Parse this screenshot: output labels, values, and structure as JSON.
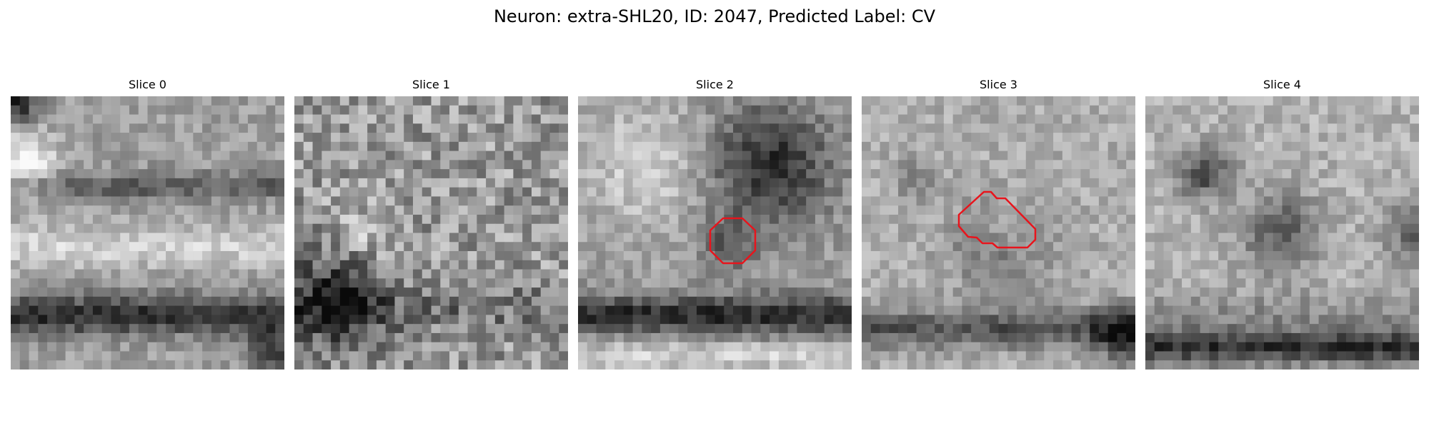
{
  "figure": {
    "title": "Neuron: extra-SHL20, ID: 2047, Predicted Label: CV"
  },
  "panels": [
    {
      "title": "Slice 0",
      "has_contour": false
    },
    {
      "title": "Slice 1",
      "has_contour": false
    },
    {
      "title": "Slice 2",
      "has_contour": true
    },
    {
      "title": "Slice 3",
      "has_contour": true
    },
    {
      "title": "Slice 4",
      "has_contour": false
    }
  ],
  "contour_color": "#e8141c",
  "colormap": "grayscale"
}
